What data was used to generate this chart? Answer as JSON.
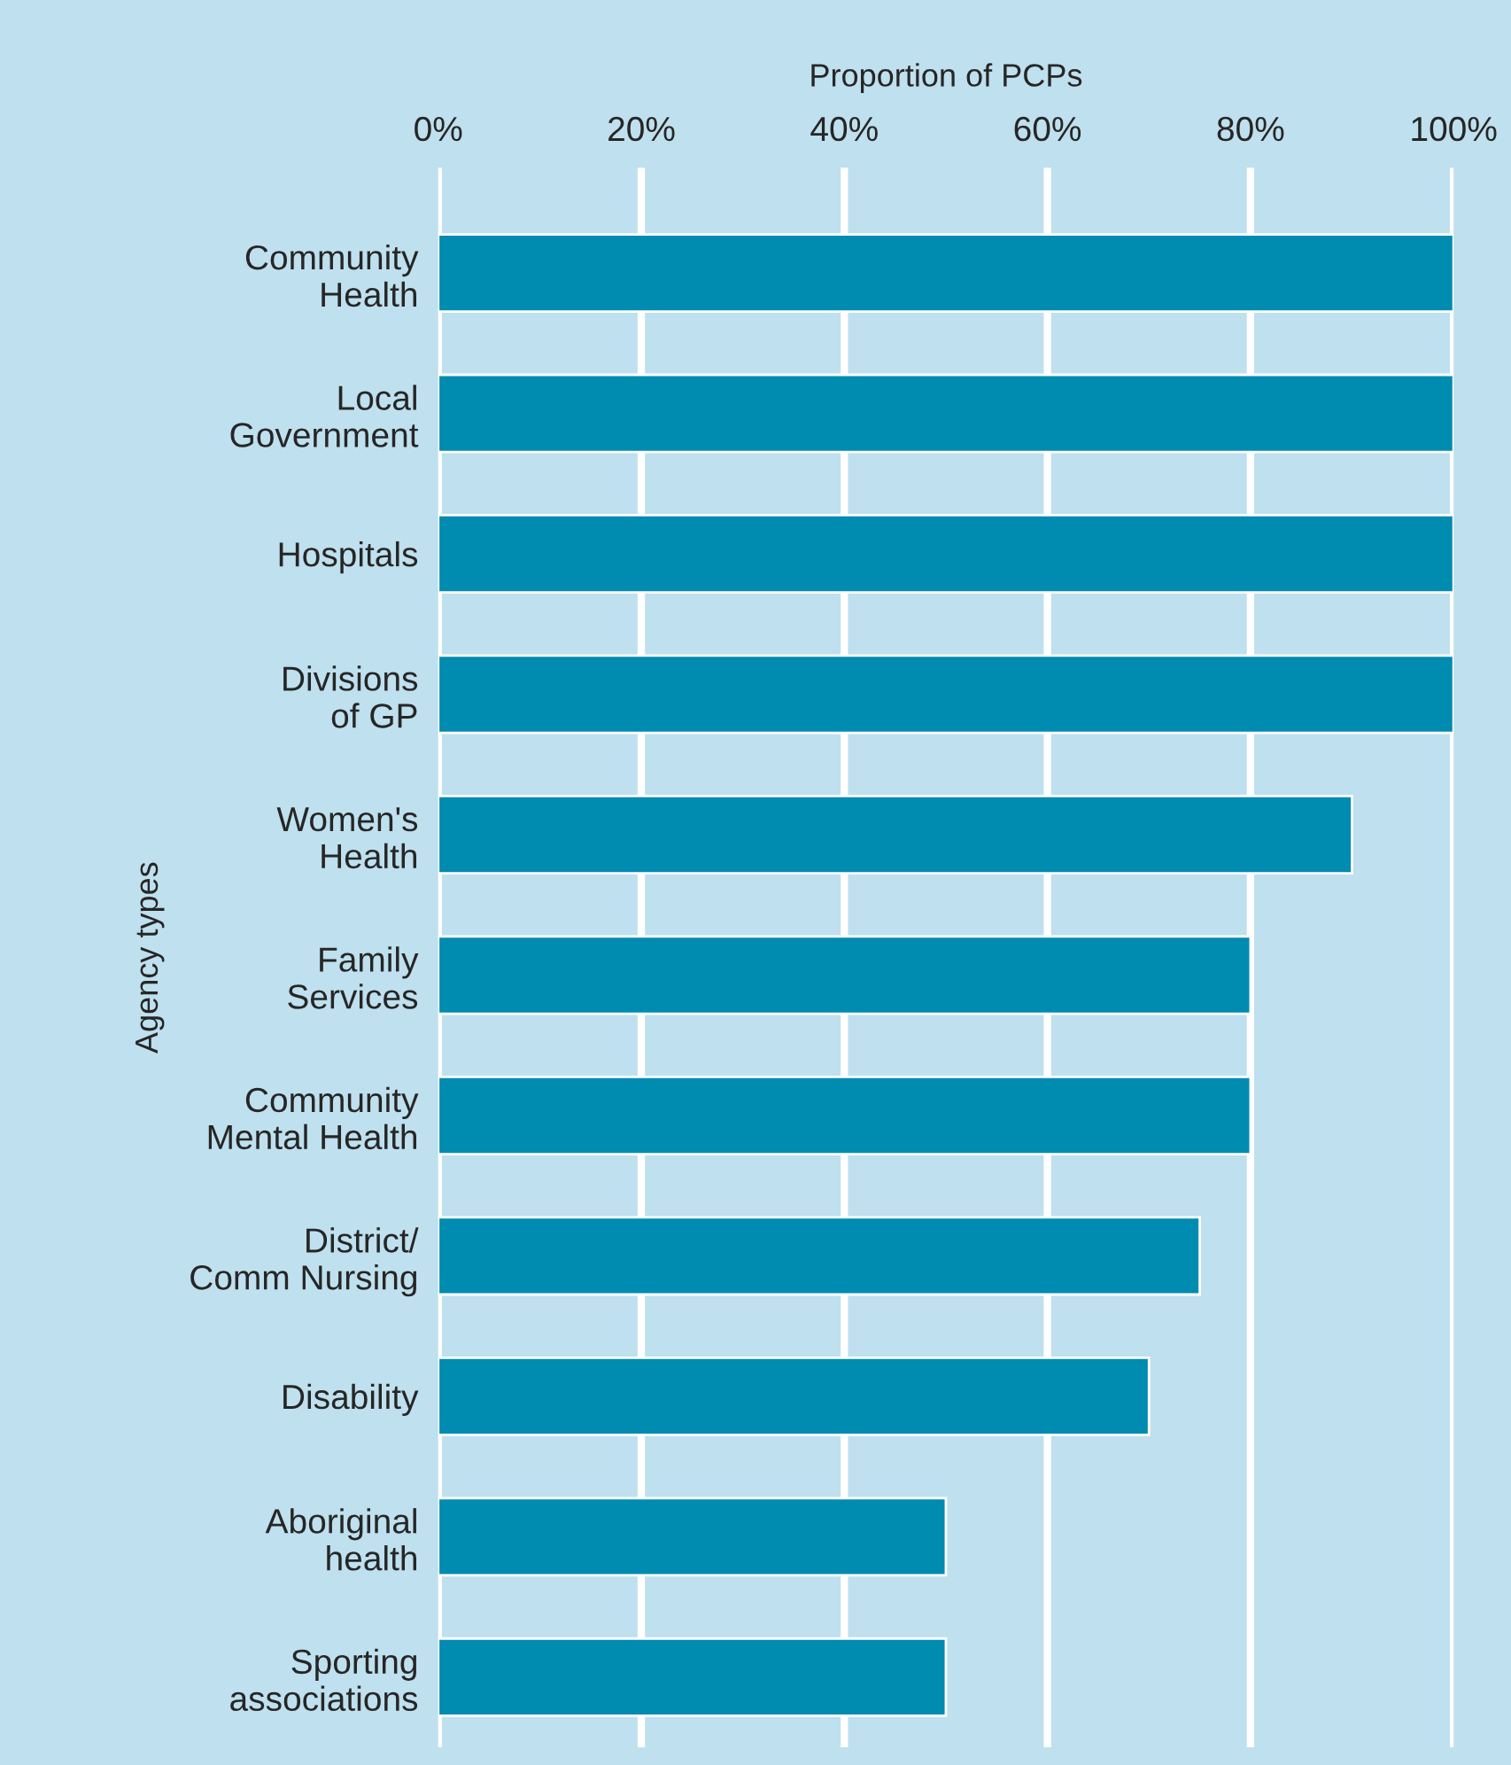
{
  "chart_data": {
    "type": "bar",
    "orientation": "horizontal",
    "xlabel": "Proportion of PCPs",
    "ylabel": "Agency types",
    "categories": [
      "Community\nHealth",
      "Local\nGovernment",
      "Hospitals",
      "Divisions\nof GP",
      "Women's\nHealth",
      "Family\nServices",
      "Community\nMental Health",
      "District/\nComm Nursing",
      "Disability",
      "Aboriginal\nhealth",
      "Sporting\nassociations"
    ],
    "values": [
      100,
      100,
      100,
      100,
      90,
      80,
      80,
      75,
      70,
      50,
      50
    ],
    "color": "#008bb0",
    "xlim": [
      0,
      100
    ],
    "xticks": [
      {
        "value": 0,
        "label": "0%"
      },
      {
        "value": 20,
        "label": "20%"
      },
      {
        "value": 40,
        "label": "40%"
      },
      {
        "value": 60,
        "label": "60%"
      },
      {
        "value": 80,
        "label": "80%"
      },
      {
        "value": 100,
        "label": "100%"
      }
    ],
    "grid": "x"
  }
}
